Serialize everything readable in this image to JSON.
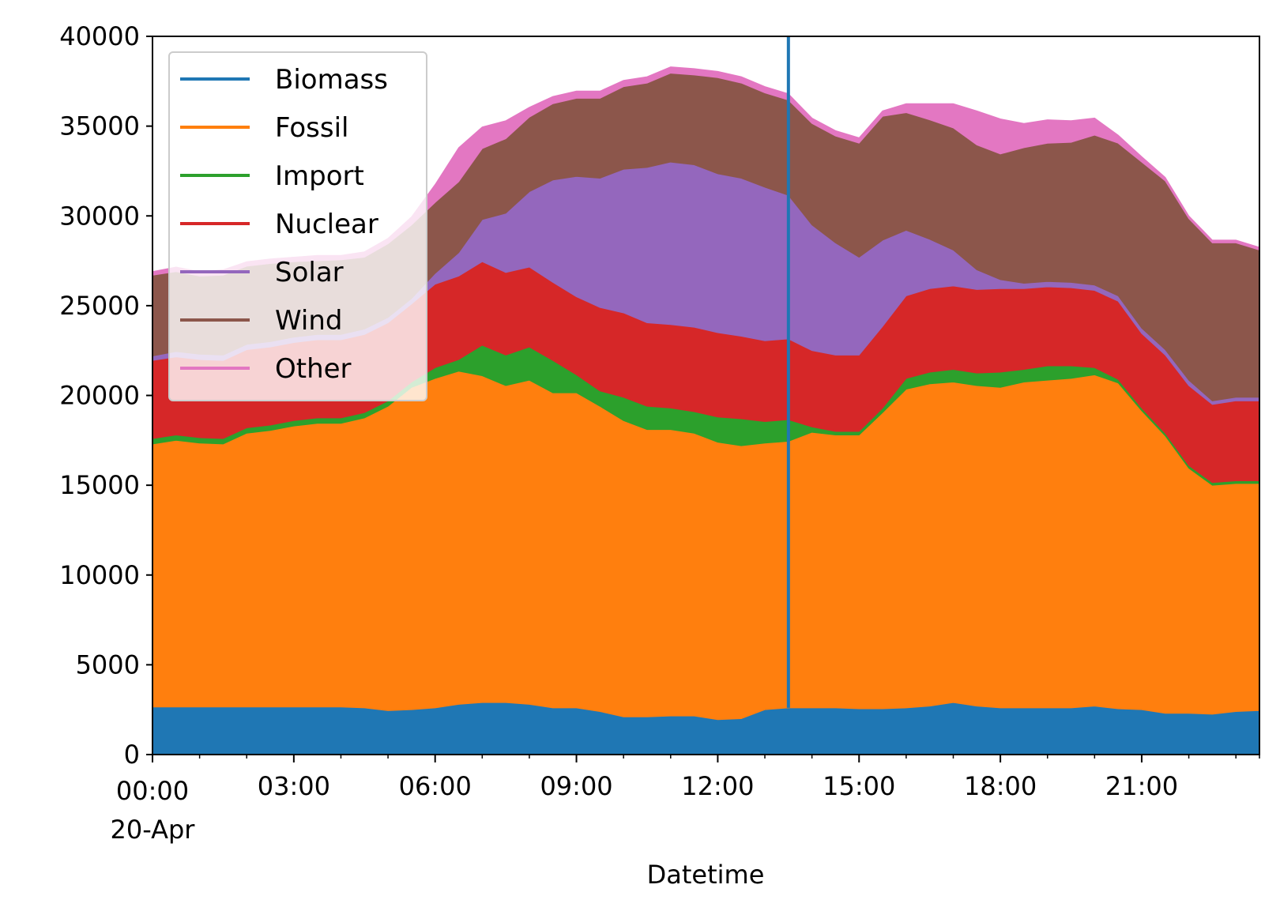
{
  "chart_data": {
    "type": "area",
    "stacked": true,
    "title": "",
    "xlabel": "Datetime",
    "ylabel": "",
    "ylim": [
      0,
      40000
    ],
    "y_ticks": [
      0,
      5000,
      10000,
      15000,
      20000,
      25000,
      30000,
      35000,
      40000
    ],
    "x_ticks": [
      {
        "hour": 0,
        "label": "00:00",
        "sublabel": "20-Apr"
      },
      {
        "hour": 3,
        "label": "03:00"
      },
      {
        "hour": 6,
        "label": "06:00"
      },
      {
        "hour": 9,
        "label": "09:00"
      },
      {
        "hour": 12,
        "label": "12:00"
      },
      {
        "hour": 15,
        "label": "15:00"
      },
      {
        "hour": 18,
        "label": "18:00"
      },
      {
        "hour": 21,
        "label": "21:00"
      }
    ],
    "x": [
      "00:00",
      "00:30",
      "01:00",
      "01:30",
      "02:00",
      "02:30",
      "03:00",
      "03:30",
      "04:00",
      "04:30",
      "05:00",
      "05:30",
      "06:00",
      "06:30",
      "07:00",
      "07:30",
      "08:00",
      "08:30",
      "09:00",
      "09:30",
      "10:00",
      "10:30",
      "11:00",
      "11:30",
      "12:00",
      "12:30",
      "13:00",
      "13:30",
      "14:00",
      "14:30",
      "15:00",
      "15:30",
      "16:00",
      "16:30",
      "17:00",
      "17:30",
      "18:00",
      "18:30",
      "19:00",
      "19:30",
      "20:00",
      "20:30",
      "21:00",
      "21:30",
      "22:00",
      "22:30",
      "23:00",
      "23:30"
    ],
    "vline_at": "13:30",
    "legend_position": "upper left",
    "grid": false,
    "series": [
      {
        "name": "Biomass",
        "color": "#1f77b4",
        "values": [
          2650,
          2650,
          2650,
          2650,
          2650,
          2650,
          2650,
          2650,
          2650,
          2600,
          2450,
          2500,
          2600,
          2800,
          2900,
          2900,
          2800,
          2600,
          2600,
          2400,
          2100,
          2100,
          2150,
          2150,
          1950,
          2000,
          2500,
          2600,
          2600,
          2600,
          2550,
          2550,
          2600,
          2700,
          2900,
          2700,
          2600,
          2600,
          2600,
          2600,
          2700,
          2550,
          2500,
          2300,
          2300,
          2250,
          2400,
          2450
        ]
      },
      {
        "name": "Fossil",
        "color": "#ff7f0e",
        "values": [
          14650,
          14850,
          14700,
          14650,
          15250,
          15400,
          15650,
          15800,
          15800,
          16150,
          16950,
          17950,
          18350,
          18550,
          18200,
          17650,
          18050,
          17550,
          17550,
          17000,
          16500,
          16000,
          15950,
          15750,
          15450,
          15200,
          14850,
          14850,
          15350,
          15200,
          15250,
          16500,
          17750,
          17950,
          17850,
          17850,
          17850,
          18150,
          18250,
          18350,
          18450,
          18150,
          16650,
          15450,
          13650,
          12750,
          12700,
          12650
        ]
      },
      {
        "name": "Import",
        "color": "#2ca02c",
        "values": [
          300,
          300,
          300,
          300,
          300,
          300,
          300,
          300,
          300,
          300,
          300,
          300,
          600,
          650,
          1700,
          1700,
          1850,
          1800,
          1000,
          850,
          1300,
          1300,
          1200,
          1200,
          1400,
          1500,
          1200,
          1200,
          300,
          200,
          200,
          250,
          600,
          650,
          700,
          700,
          850,
          700,
          800,
          700,
          400,
          200,
          150,
          150,
          150,
          150,
          150,
          150
        ]
      },
      {
        "name": "Nuclear",
        "color": "#d62728",
        "values": [
          4350,
          4350,
          4350,
          4350,
          4350,
          4350,
          4350,
          4350,
          4350,
          4350,
          4350,
          4350,
          4650,
          4650,
          4650,
          4600,
          4450,
          4350,
          4350,
          4650,
          4700,
          4650,
          4650,
          4700,
          4700,
          4600,
          4500,
          4500,
          4250,
          4250,
          4250,
          4550,
          4600,
          4650,
          4650,
          4650,
          4650,
          4500,
          4400,
          4350,
          4300,
          4350,
          4150,
          4350,
          4450,
          4350,
          4450,
          4450
        ]
      },
      {
        "name": "Solar",
        "color": "#9467bd",
        "values": [
          250,
          300,
          300,
          300,
          300,
          300,
          300,
          300,
          300,
          300,
          300,
          300,
          600,
          1300,
          2350,
          3300,
          4200,
          5700,
          6700,
          7200,
          8000,
          8650,
          9050,
          9050,
          8850,
          8800,
          8550,
          8000,
          7000,
          6250,
          5450,
          4800,
          3650,
          2750,
          2000,
          1100,
          500,
          300,
          300,
          300,
          300,
          300,
          300,
          300,
          300,
          200,
          200,
          200
        ]
      },
      {
        "name": "Wind",
        "color": "#8c564b",
        "values": [
          4500,
          4450,
          4350,
          4450,
          4350,
          4350,
          4200,
          4100,
          4150,
          4000,
          4100,
          4100,
          3950,
          3950,
          3950,
          4150,
          4150,
          4250,
          4350,
          4450,
          4600,
          4700,
          4950,
          5000,
          5350,
          5300,
          5250,
          5300,
          5650,
          5950,
          6350,
          6900,
          6550,
          6650,
          6800,
          6950,
          7000,
          7550,
          7700,
          7800,
          8350,
          8500,
          9250,
          9400,
          9000,
          8800,
          8600,
          8200
        ]
      },
      {
        "name": "Other",
        "color": "#e377c2",
        "values": [
          200,
          250,
          250,
          300,
          250,
          250,
          250,
          300,
          250,
          300,
          300,
          450,
          1000,
          1900,
          1200,
          1000,
          550,
          400,
          400,
          400,
          350,
          350,
          350,
          350,
          350,
          350,
          350,
          350,
          300,
          300,
          300,
          300,
          500,
          900,
          1350,
          1900,
          1950,
          1350,
          1300,
          1200,
          950,
          450,
          300,
          200,
          150,
          150,
          150,
          150
        ]
      }
    ]
  }
}
